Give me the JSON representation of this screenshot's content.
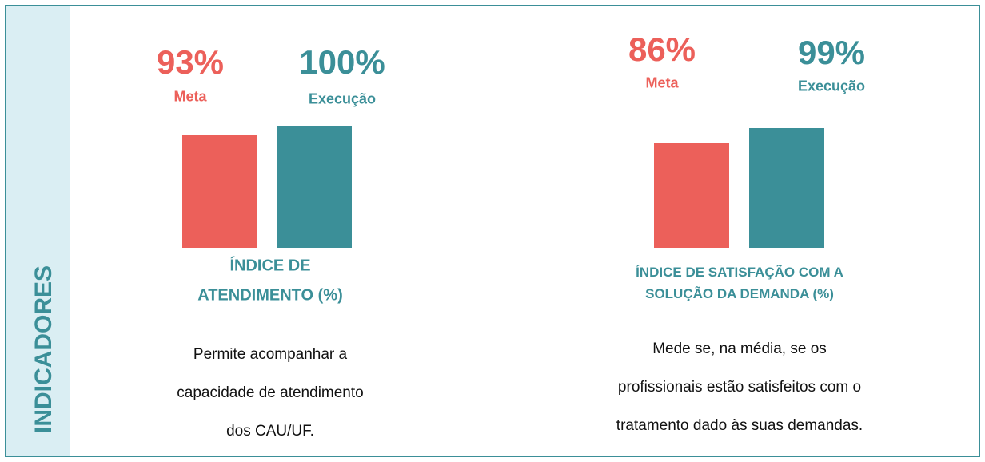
{
  "sidebar": "INDICADORES",
  "chart_data": [
    {
      "type": "bar",
      "title": [
        "ÍNDICE DE",
        "ATENDIMENTO (%)"
      ],
      "categories": [
        "Meta",
        "Execução"
      ],
      "values": [
        93,
        100
      ],
      "value_labels": [
        "93%",
        "100%"
      ],
      "colors": [
        "#ec605a",
        "#3b8f98"
      ],
      "description": [
        "Permite acompanhar a",
        "capacidade de atendimento",
        "dos CAU/UF."
      ]
    },
    {
      "type": "bar",
      "title": [
        "ÍNDICE DE SATISFAÇÃO COM A",
        "SOLUÇÃO DA DEMANDA (%)"
      ],
      "categories": [
        "Meta",
        "Execução"
      ],
      "values": [
        86,
        99
      ],
      "value_labels": [
        "86%",
        "99%"
      ],
      "colors": [
        "#ec605a",
        "#3b8f98"
      ],
      "description": [
        "Mede se, na média, se os",
        "profissionais estão satisfeitos com o",
        "tratamento dado às suas demandas."
      ]
    }
  ]
}
